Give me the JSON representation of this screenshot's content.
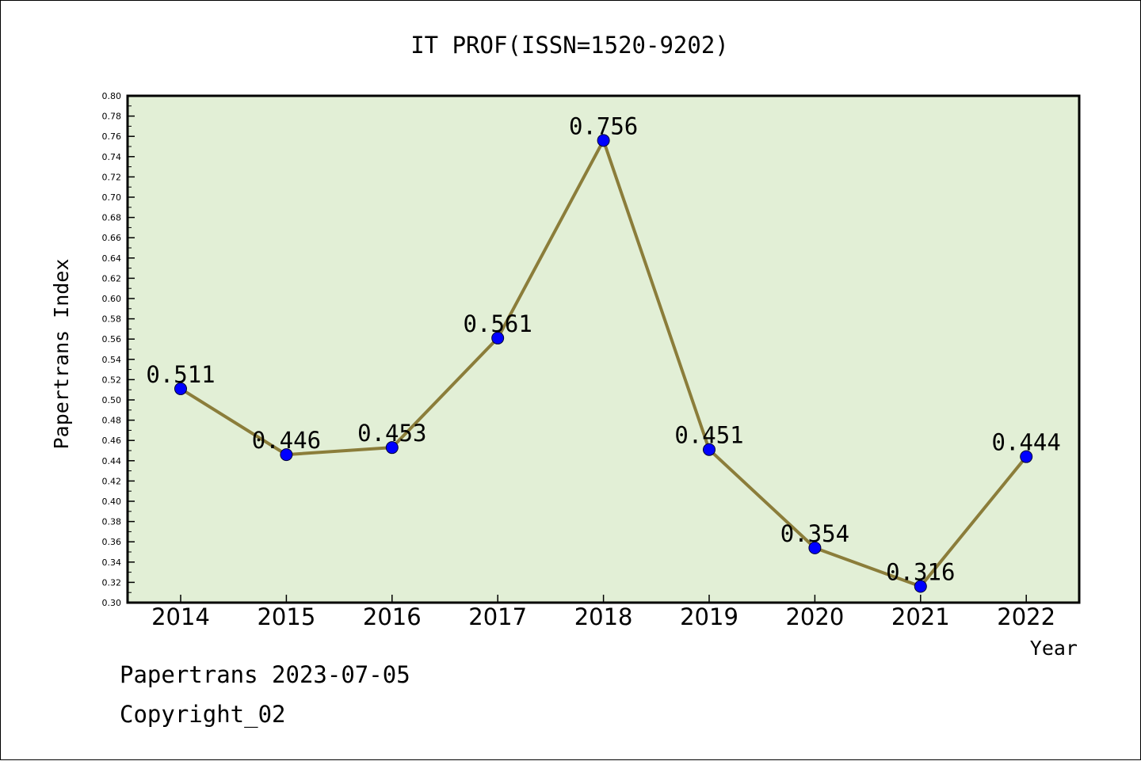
{
  "chart_data": {
    "type": "line",
    "title": "IT PROF(ISSN=1520-9202)",
    "xlabel": "Year",
    "ylabel": "Papertrans Index",
    "categories": [
      "2014",
      "2015",
      "2016",
      "2017",
      "2018",
      "2019",
      "2020",
      "2021",
      "2022"
    ],
    "series": [
      {
        "values": [
          0.511,
          0.446,
          0.453,
          0.561,
          0.756,
          0.451,
          0.354,
          0.316,
          0.444
        ],
        "line_color": "#8b7d3a",
        "marker_color": "#0000ff"
      }
    ],
    "data_labels": [
      "0.511",
      "0.446",
      "0.453",
      "0.561",
      "0.756",
      "0.451",
      "0.354",
      "0.316",
      "0.444"
    ],
    "ylim": [
      0.3,
      0.8
    ],
    "ytick_step": 0.02,
    "ytick_labels": [
      "0.30",
      "0.32",
      "0.34",
      "0.36",
      "0.38",
      "0.40",
      "0.42",
      "0.44",
      "0.46",
      "0.48",
      "0.50",
      "0.52",
      "0.54",
      "0.56",
      "0.58",
      "0.60",
      "0.62",
      "0.64",
      "0.66",
      "0.68",
      "0.70",
      "0.72",
      "0.74",
      "0.76",
      "0.78",
      "0.80"
    ],
    "grid": false,
    "legend": "none",
    "plot_background": "#e2efd6"
  },
  "footer": {
    "line1": "Papertrans 2023-07-05",
    "line2": "Copyright_02"
  }
}
